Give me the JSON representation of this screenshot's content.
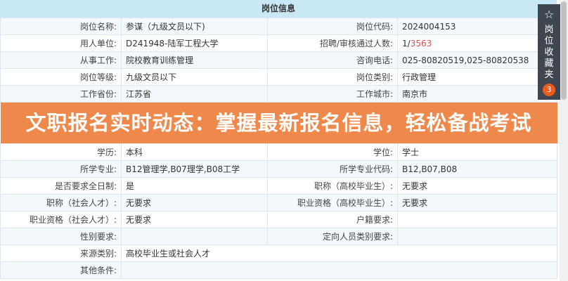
{
  "header": {
    "title": "岗位信息"
  },
  "rows": [
    {
      "l1": "岗位名称:",
      "v1": "参谋（九级文员以下)",
      "l2": "岗位代码:",
      "v2": "2024004153"
    },
    {
      "l1": "用人单位:",
      "v1": "D241948-陆军工程大学",
      "l2": "招聘/审核通过人数:",
      "v2a": "1/",
      "v2b": "3563"
    },
    {
      "l1": "从事工作:",
      "v1": "院校教育训练管理",
      "l2": "咨询电话:",
      "v2": "025-80820519,025-80820538"
    },
    {
      "l1": "岗位等级:",
      "v1": "九级文员以下",
      "l2": "岗位类别:",
      "v2": "行政管理"
    },
    {
      "l1": "工作省份:",
      "v1": "江苏省",
      "l2": "工作城市:",
      "v2": "南京市"
    },
    {
      "l1": "学历:",
      "v1": "本科",
      "l2": "学位:",
      "v2": "学士"
    },
    {
      "l1": "所学专业:",
      "v1": "B12管理学,B07理学,B08工学",
      "l2": "所学专业代码:",
      "v2": "B12,B07,B08"
    },
    {
      "l1": "是否要求全日制:",
      "v1": "是",
      "l2": "职称（高校毕业生）:",
      "v2": "无要求"
    },
    {
      "l1": "职称（社会人才）:",
      "v1": "无要求",
      "l2": "职业资格（高校毕业生）:",
      "v2": "无要求"
    },
    {
      "l1": "职业资格（社会人才）:",
      "v1": "无要求",
      "l2": "户籍要求:",
      "v2": ""
    },
    {
      "l1": "性别要求:",
      "v1": "",
      "l2": "定向人员类别要求:",
      "v2": ""
    },
    {
      "l1": "来源类别:",
      "v1": "高校毕业生或社会人才"
    },
    {
      "l1": "其他条件:",
      "v1": ""
    }
  ],
  "favorites": {
    "icon": "star-icon",
    "label": "岗位收藏夹",
    "count": "3"
  },
  "banner": {
    "text": "文职报名实时动态：掌握最新报名信息，轻松备战考试"
  },
  "colors": {
    "header": "#c8e8f5",
    "banner": "#ee884b",
    "badge": "#f05a1a",
    "highlight": "#d9534f"
  }
}
